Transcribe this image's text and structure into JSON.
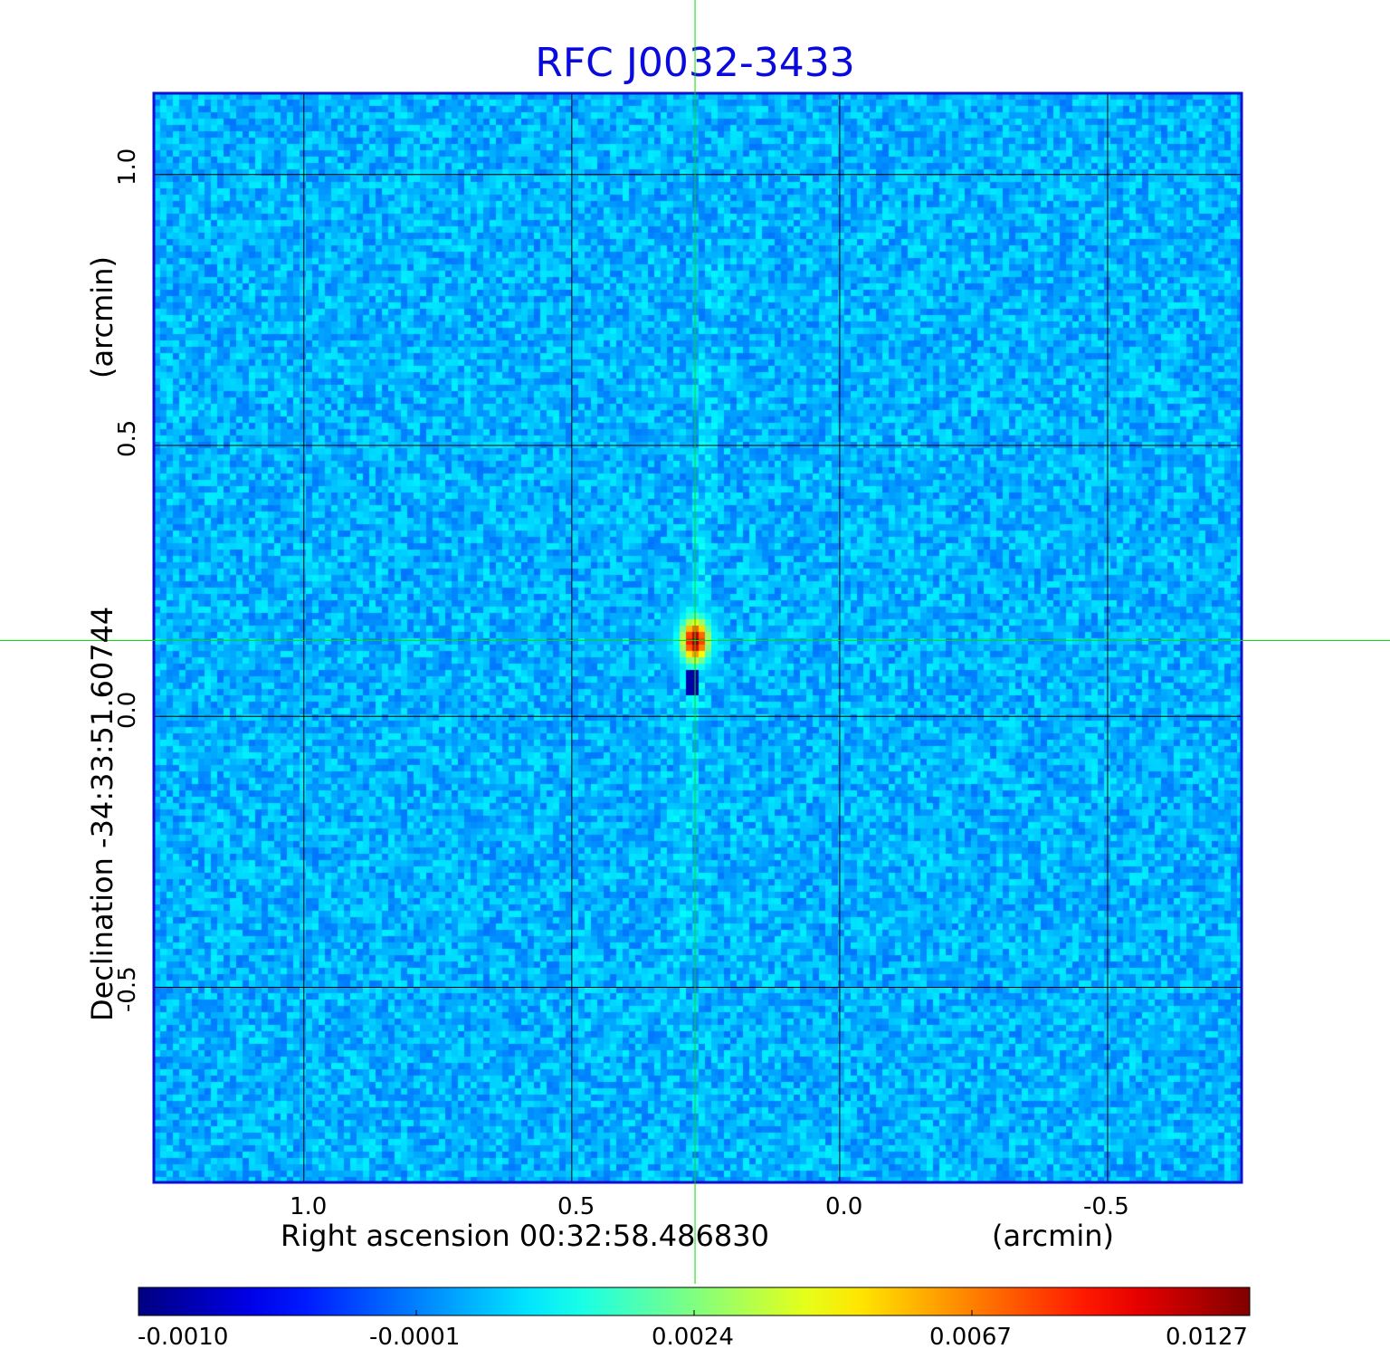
{
  "chart_data": {
    "type": "heatmap",
    "title": "RFC J0032-3433",
    "xlabel": "Right ascension  00:32:58.486830",
    "xunit": "(arcmin)",
    "ylabel": "Declination  -34:33:51.60744",
    "yunit": "(arcmin)",
    "x_ticks": [
      "1.0",
      "0.5",
      "0.0",
      "-0.5"
    ],
    "y_ticks": [
      "1.0",
      "0.5",
      "0.0",
      "-0.5"
    ],
    "x_range_arcmin": [
      1.28,
      -0.75
    ],
    "y_range_arcmin": [
      -0.86,
      1.15
    ],
    "grid": true,
    "crosshair": {
      "ra_offset_arcmin": 0.27,
      "dec_offset_arcmin": 0.14,
      "color": "#00e000"
    },
    "source_peak": {
      "ra_offset_arcmin": 0.27,
      "dec_offset_arcmin": 0.14,
      "value": 0.0127
    },
    "colorbar": {
      "ticks": [
        "-0.0010",
        "-0.0001",
        "0.0024",
        "0.0067",
        "0.0127"
      ],
      "colormap": "jet"
    },
    "background_level": -0.0001
  }
}
